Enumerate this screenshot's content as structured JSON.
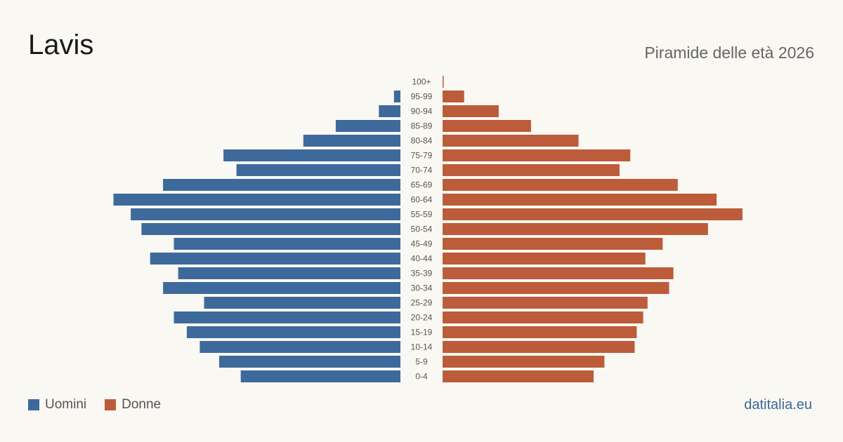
{
  "header": {
    "title": "Lavis",
    "subtitle": "Piramide delle età 2026"
  },
  "legend": {
    "men_label": "Uomini",
    "women_label": "Donne"
  },
  "footer": {
    "source": "datitalia.eu"
  },
  "colors": {
    "men": "#3d6a9b",
    "women": "#bc5c3b"
  },
  "chart_data": {
    "type": "bar",
    "orientation": "horizontal-pyramid",
    "categories": [
      "100+",
      "95-99",
      "90-94",
      "85-89",
      "80-84",
      "75-79",
      "70-74",
      "65-69",
      "60-64",
      "55-59",
      "50-54",
      "45-49",
      "40-44",
      "35-39",
      "30-34",
      "25-29",
      "20-24",
      "15-19",
      "10-14",
      "5-9",
      "0-4"
    ],
    "series": [
      {
        "name": "Uomini",
        "values": [
          0,
          3,
          10,
          30,
          45,
          82,
          76,
          110,
          133,
          125,
          120,
          105,
          116,
          103,
          110,
          91,
          105,
          99,
          93,
          84,
          74
        ]
      },
      {
        "name": "Donne",
        "values": [
          0.5,
          10,
          26,
          41,
          63,
          87,
          82,
          109,
          127,
          139,
          123,
          102,
          94,
          107,
          105,
          95,
          93,
          90,
          89,
          75,
          70
        ]
      }
    ],
    "xlim": [
      0,
      140
    ],
    "grid": false,
    "legend_position": "bottom-left"
  }
}
